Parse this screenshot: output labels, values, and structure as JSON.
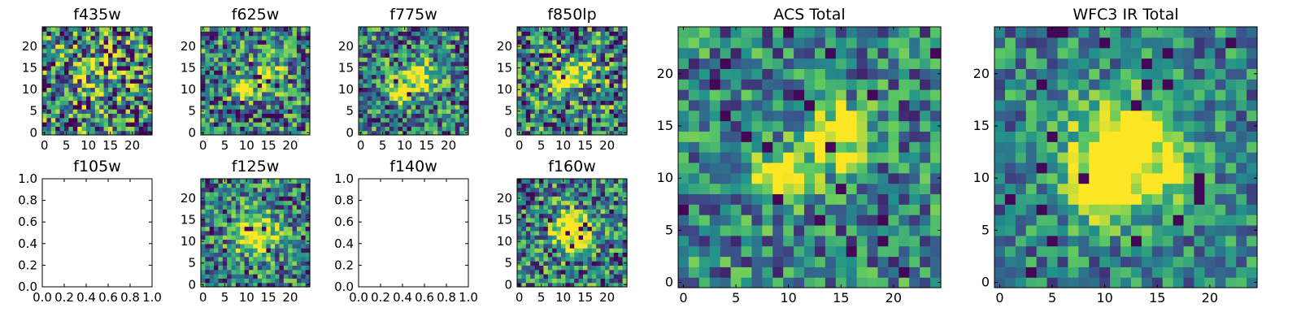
{
  "figure": {
    "description_free": true,
    "colormap": [
      "#440154",
      "#3b528b",
      "#21918c",
      "#5ec962",
      "#fde725"
    ]
  },
  "chart_data": [
    {
      "id": "f435w",
      "type": "heatmap",
      "title": "f435w",
      "has_image": true,
      "noise": 0.55,
      "sources": [
        [
          11,
          12,
          3.5,
          0.25
        ]
      ],
      "xticks": [
        0,
        5,
        10,
        15,
        20
      ],
      "yticks": [
        0,
        5,
        10,
        15,
        20
      ],
      "xlim": [
        -0.5,
        24.5
      ],
      "ylim": [
        -0.5,
        24.5
      ]
    },
    {
      "id": "f625w",
      "type": "heatmap",
      "title": "f625w",
      "has_image": true,
      "noise": 0.45,
      "sources": [
        [
          9,
          10,
          1.6,
          0.6
        ],
        [
          15,
          14,
          2.5,
          0.4
        ]
      ],
      "xticks": [
        0,
        5,
        10,
        15,
        20
      ],
      "yticks": [
        0,
        5,
        10,
        15,
        20
      ],
      "xlim": [
        -0.5,
        24.5
      ],
      "ylim": [
        -0.5,
        24.5
      ]
    },
    {
      "id": "f775w",
      "type": "heatmap",
      "title": "f775w",
      "has_image": true,
      "noise": 0.42,
      "sources": [
        [
          9,
          10,
          1.8,
          0.7
        ],
        [
          14,
          13,
          2.5,
          0.5
        ]
      ],
      "xticks": [
        0,
        5,
        10,
        15,
        20
      ],
      "yticks": [
        0,
        5,
        10,
        15,
        20
      ],
      "xlim": [
        -0.5,
        24.5
      ],
      "ylim": [
        -0.5,
        24.5
      ]
    },
    {
      "id": "f850lp",
      "type": "heatmap",
      "title": "f850lp",
      "has_image": true,
      "noise": 0.5,
      "sources": [
        [
          9,
          11,
          1.8,
          0.6
        ],
        [
          14,
          14,
          2.5,
          0.5
        ]
      ],
      "xticks": [
        0,
        5,
        10,
        15,
        20
      ],
      "yticks": [
        0,
        5,
        10,
        15,
        20
      ],
      "xlim": [
        -0.5,
        24.5
      ],
      "ylim": [
        -0.5,
        24.5
      ]
    },
    {
      "id": "f105w",
      "type": "heatmap",
      "title": "f105w",
      "has_image": false,
      "xticks": [
        "0.0",
        "0.2",
        "0.4",
        "0.6",
        "0.8",
        "1.0"
      ],
      "yticks": [
        "0.0",
        "0.2",
        "0.4",
        "0.6",
        "0.8",
        "1.0"
      ],
      "xlim": [
        0,
        1
      ],
      "ylim": [
        0,
        1
      ]
    },
    {
      "id": "f125w",
      "type": "heatmap",
      "title": "f125w",
      "has_image": true,
      "noise": 0.4,
      "sources": [
        [
          12,
          12,
          3.2,
          0.8
        ]
      ],
      "xticks": [
        0,
        5,
        10,
        15,
        20
      ],
      "yticks": [
        0,
        5,
        10,
        15,
        20
      ],
      "xlim": [
        -0.5,
        24.5
      ],
      "ylim": [
        -0.5,
        24.5
      ]
    },
    {
      "id": "f140w",
      "type": "heatmap",
      "title": "f140w",
      "has_image": false,
      "xticks": [
        "0.0",
        "0.2",
        "0.4",
        "0.6",
        "0.8",
        "1.0"
      ],
      "yticks": [
        "0.0",
        "0.2",
        "0.4",
        "0.6",
        "0.8",
        "1.0"
      ],
      "xlim": [
        0,
        1
      ],
      "ylim": [
        0,
        1
      ]
    },
    {
      "id": "f160w",
      "type": "heatmap",
      "title": "f160w",
      "has_image": true,
      "noise": 0.42,
      "sources": [
        [
          12,
          12,
          3.2,
          0.8
        ]
      ],
      "xticks": [
        0,
        5,
        10,
        15,
        20
      ],
      "yticks": [
        0,
        5,
        10,
        15,
        20
      ],
      "xlim": [
        -0.5,
        24.5
      ],
      "ylim": [
        -0.5,
        24.5
      ]
    },
    {
      "id": "acs",
      "type": "heatmap",
      "title": "ACS Total",
      "has_image": true,
      "noise": 0.35,
      "sources": [
        [
          9,
          10,
          1.8,
          0.75
        ],
        [
          14,
          13.5,
          2.2,
          0.55
        ],
        [
          16,
          15,
          1.6,
          0.35
        ]
      ],
      "xticks": [
        0,
        5,
        10,
        15,
        20
      ],
      "yticks": [
        0,
        5,
        10,
        15,
        20
      ],
      "xlim": [
        -0.5,
        24.5
      ],
      "ylim": [
        -0.5,
        24.5
      ]
    },
    {
      "id": "wfc3",
      "type": "heatmap",
      "title": "WFC3 IR Total",
      "has_image": true,
      "noise": 0.3,
      "sources": [
        [
          12,
          12,
          3.6,
          0.85
        ],
        [
          9,
          9,
          2.0,
          0.3
        ]
      ],
      "xticks": [
        0,
        5,
        10,
        15,
        20
      ],
      "yticks": [
        0,
        5,
        10,
        15,
        20
      ],
      "xlim": [
        -0.5,
        24.5
      ],
      "ylim": [
        -0.5,
        24.5
      ]
    }
  ]
}
